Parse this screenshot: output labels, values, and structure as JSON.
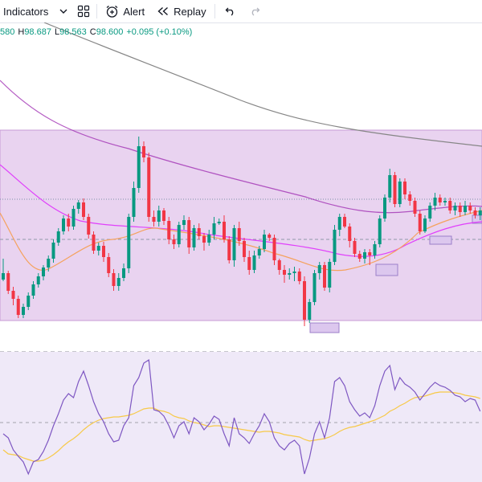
{
  "toolbar": {
    "indicators_label": "Indicators",
    "alert_label": "Alert",
    "replay_label": "Replay"
  },
  "icons": {
    "dropdown": "chevron-down-icon",
    "layout": "grid-icon",
    "alert": "alarm-clock-plus-icon",
    "replay": "rewind-icon",
    "undo": "undo-icon",
    "redo": "redo-icon"
  },
  "ohlc": {
    "open": "580",
    "high_label": "H",
    "high": "98.687",
    "low_label": "L",
    "low": "98.563",
    "close_label": "C",
    "close": "98.600",
    "change": "+0.095 (+0.10%)"
  },
  "colors": {
    "up": "#089981",
    "down": "#f23645",
    "zone": "#e9d3f0",
    "zone_border": "#c79bd6",
    "rsi_bg": "#efe9f8",
    "ma_long": "#868686",
    "ma_mid": "#9c27b0",
    "ma_fast": "#e040fb",
    "ma_short": "#f5a25d",
    "rsi_line": "#7e57c2",
    "rsi_ma": "#f7c948"
  },
  "chart_data": {
    "type": "candlestick",
    "candles": [
      [
        348,
        340,
        322,
        350
      ],
      [
        340,
        362,
        337,
        366
      ],
      [
        362,
        372,
        357,
        380
      ],
      [
        372,
        392,
        368,
        396
      ],
      [
        392,
        382,
        378,
        396
      ],
      [
        382,
        368,
        364,
        386
      ],
      [
        368,
        354,
        350,
        372
      ],
      [
        354,
        344,
        340,
        358
      ],
      [
        344,
        333,
        330,
        349
      ],
      [
        333,
        322,
        318,
        338
      ],
      [
        322,
        302,
        298,
        327
      ],
      [
        302,
        288,
        284,
        306
      ],
      [
        288,
        272,
        268,
        292
      ],
      [
        272,
        282,
        266,
        288
      ],
      [
        282,
        260,
        256,
        286
      ],
      [
        260,
        252,
        249,
        266
      ],
      [
        252,
        270,
        247,
        274
      ],
      [
        270,
        292,
        266,
        297
      ],
      [
        292,
        312,
        288,
        316
      ],
      [
        312,
        306,
        302,
        318
      ],
      [
        306,
        320,
        301,
        326
      ],
      [
        320,
        340,
        315,
        345
      ],
      [
        340,
        356,
        335,
        362
      ],
      [
        356,
        346,
        340,
        362
      ],
      [
        346,
        334,
        328,
        350
      ],
      [
        334,
        270,
        266,
        340
      ],
      [
        270,
        234,
        226,
        276
      ],
      [
        234,
        182,
        170,
        240
      ],
      [
        182,
        196,
        176,
        202
      ],
      [
        196,
        270,
        190,
        276
      ],
      [
        270,
        276,
        262,
        282
      ],
      [
        276,
        262,
        256,
        282
      ],
      [
        262,
        275,
        259,
        280
      ],
      [
        275,
        298,
        270,
        304
      ],
      [
        298,
        304,
        292,
        310
      ],
      [
        304,
        280,
        276,
        308
      ],
      [
        280,
        274,
        268,
        286
      ],
      [
        274,
        308,
        270,
        316
      ],
      [
        308,
        284,
        280,
        312
      ],
      [
        284,
        294,
        278,
        298
      ],
      [
        294,
        302,
        290,
        312
      ],
      [
        302,
        292,
        286,
        306
      ],
      [
        292,
        278,
        270,
        298
      ],
      [
        278,
        276,
        272,
        280
      ],
      [
        276,
        298,
        268,
        302
      ],
      [
        298,
        324,
        294,
        328
      ],
      [
        324,
        284,
        280,
        332
      ],
      [
        284,
        300,
        276,
        306
      ],
      [
        300,
        320,
        296,
        326
      ],
      [
        320,
        336,
        312,
        342
      ],
      [
        336,
        318,
        312,
        340
      ],
      [
        318,
        310,
        306,
        322
      ],
      [
        310,
        292,
        286,
        314
      ],
      [
        292,
        296,
        290,
        300
      ],
      [
        296,
        324,
        292,
        330
      ],
      [
        324,
        336,
        322,
        342
      ],
      [
        336,
        342,
        330,
        352
      ],
      [
        342,
        340,
        334,
        348
      ],
      [
        340,
        338,
        332,
        350
      ],
      [
        338,
        350,
        334,
        354
      ],
      [
        350,
        398,
        344,
        406
      ],
      [
        398,
        376,
        372,
        402
      ],
      [
        376,
        340,
        336,
        380
      ],
      [
        340,
        330,
        326,
        348
      ],
      [
        330,
        358,
        326,
        362
      ],
      [
        358,
        326,
        322,
        364
      ],
      [
        326,
        286,
        280,
        330
      ],
      [
        286,
        270,
        266,
        294
      ],
      [
        270,
        282,
        266,
        284
      ],
      [
        282,
        300,
        278,
        308
      ],
      [
        300,
        316,
        296,
        320
      ],
      [
        316,
        322,
        312,
        326
      ],
      [
        322,
        314,
        310,
        328
      ],
      [
        314,
        318,
        310,
        330
      ],
      [
        318,
        304,
        300,
        322
      ],
      [
        304,
        272,
        268,
        308
      ],
      [
        272,
        246,
        242,
        276
      ],
      [
        246,
        218,
        210,
        252
      ],
      [
        218,
        254,
        214,
        258
      ],
      [
        254,
        226,
        222,
        258
      ],
      [
        226,
        242,
        222,
        248
      ],
      [
        242,
        250,
        238,
        256
      ],
      [
        250,
        266,
        246,
        270
      ],
      [
        266,
        288,
        262,
        292
      ],
      [
        288,
        272,
        268,
        290
      ],
      [
        272,
        256,
        252,
        276
      ],
      [
        256,
        246,
        240,
        262
      ],
      [
        246,
        252,
        242,
        256
      ],
      [
        252,
        250,
        246,
        256
      ],
      [
        250,
        262,
        246,
        266
      ],
      [
        262,
        256,
        252,
        268
      ],
      [
        256,
        264,
        252,
        270
      ],
      [
        264,
        256,
        250,
        268
      ],
      [
        256,
        262,
        252,
        266
      ],
      [
        262,
        268,
        258,
        272
      ],
      [
        268,
        262,
        258,
        274
      ]
    ],
    "rsi": [
      540,
      545,
      560,
      568,
      575,
      590,
      575,
      572,
      562,
      548,
      530,
      515,
      498,
      490,
      495,
      475,
      462,
      480,
      500,
      515,
      525,
      540,
      550,
      548,
      530,
      520,
      480,
      470,
      452,
      448,
      510,
      512,
      518,
      530,
      545,
      530,
      525,
      540,
      520,
      525,
      535,
      528,
      518,
      522,
      540,
      555,
      520,
      540,
      545,
      552,
      540,
      530,
      515,
      525,
      545,
      555,
      560,
      552,
      548,
      555,
      590,
      570,
      540,
      525,
      545,
      520,
      475,
      470,
      480,
      500,
      510,
      518,
      514,
      520,
      505,
      480,
      462,
      455,
      485,
      470,
      478,
      482,
      488,
      498,
      490,
      482,
      476,
      480,
      482,
      486,
      492,
      494,
      500,
      496,
      498,
      512
    ],
    "rsi_ma": [
      560,
      565,
      566,
      567,
      570,
      572,
      574,
      574,
      573,
      570,
      566,
      561,
      555,
      550,
      546,
      541,
      535,
      530,
      526,
      523,
      521,
      520,
      519,
      519,
      518,
      517,
      515,
      512,
      509,
      508,
      508,
      511,
      512,
      514,
      518,
      520,
      521,
      524,
      526,
      527,
      529,
      531,
      530,
      530,
      531,
      532,
      533,
      534,
      535,
      536,
      537,
      538,
      537,
      537,
      538,
      539,
      541,
      542,
      543,
      544,
      547,
      549,
      548,
      547,
      546,
      544,
      541,
      537,
      534,
      532,
      531,
      529,
      527,
      525,
      523,
      520,
      517,
      512,
      509,
      505,
      502,
      498,
      495,
      494,
      493,
      491,
      489,
      488,
      488,
      488,
      489,
      490,
      492,
      493,
      494,
      496
    ]
  }
}
